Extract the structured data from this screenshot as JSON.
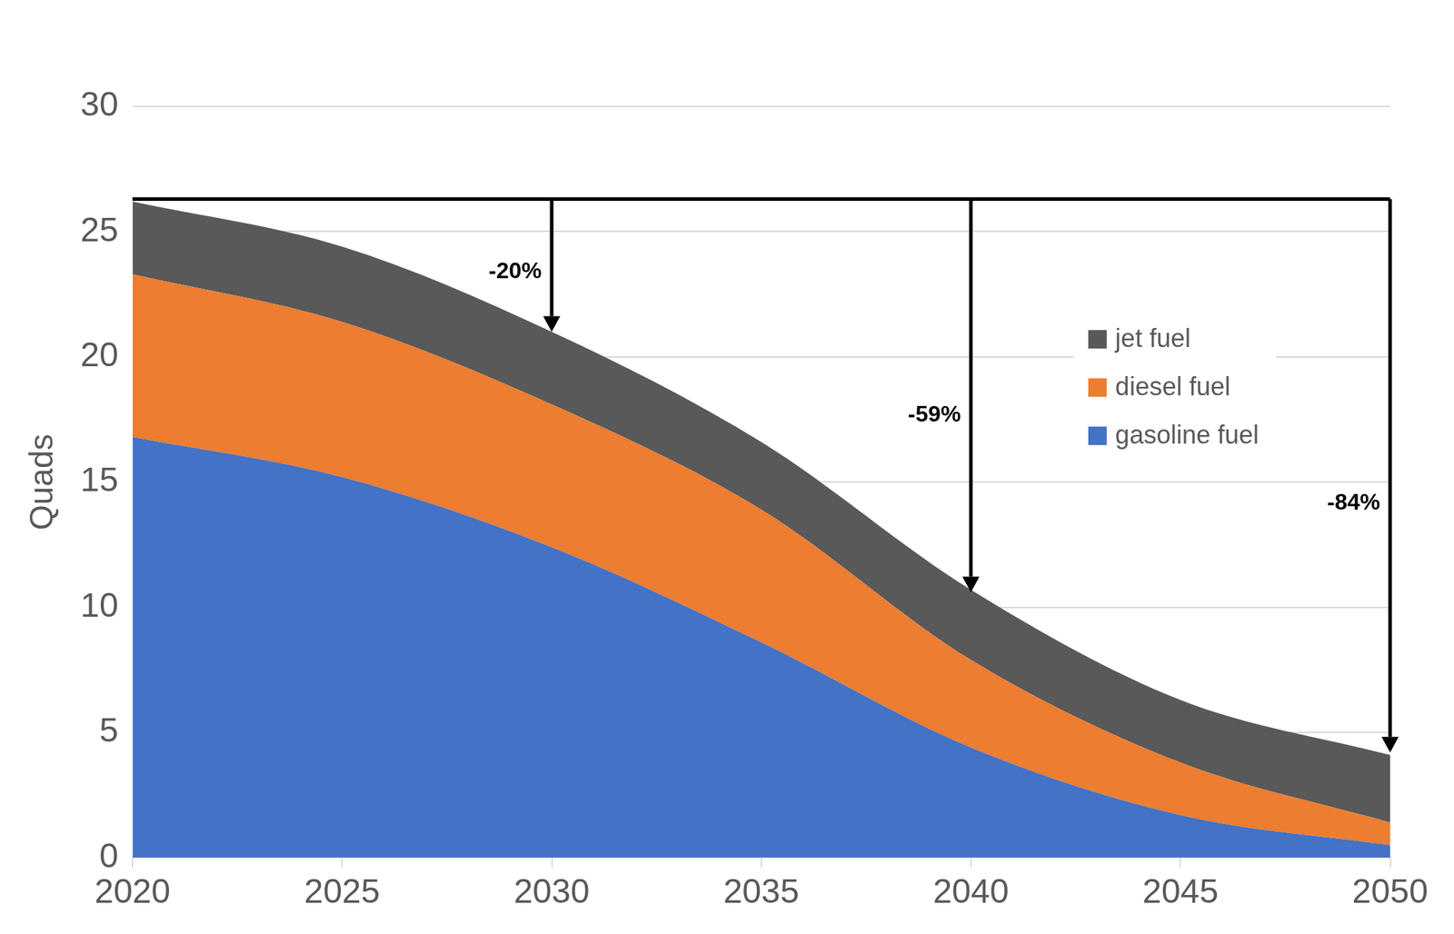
{
  "chart_data": {
    "type": "area",
    "stacked": true,
    "y_label": "Quads",
    "x": [
      2020,
      2025,
      2030,
      2035,
      2040,
      2045,
      2050
    ],
    "series": [
      {
        "name": "gasoline fuel",
        "color": "#4472c4",
        "values": [
          16.8,
          15.2,
          12.4,
          8.6,
          4.4,
          1.7,
          0.5
        ]
      },
      {
        "name": "diesel fuel",
        "color": "#ed7d31",
        "values": [
          6.5,
          6.2,
          5.7,
          5.3,
          3.5,
          2.1,
          0.9
        ]
      },
      {
        "name": "jet fuel",
        "color": "#595959",
        "values": [
          2.9,
          3.0,
          2.9,
          2.7,
          2.8,
          2.5,
          2.7
        ]
      }
    ],
    "xlim": [
      2020,
      2050
    ],
    "xticks": [
      2020,
      2025,
      2030,
      2035,
      2040,
      2045,
      2050
    ],
    "ylim": [
      0,
      30
    ],
    "yticks": [
      0,
      5,
      10,
      15,
      20,
      25,
      30
    ],
    "grid": true,
    "legend": "right",
    "annotations": [
      {
        "text": "-20%",
        "x": 2030,
        "y_from": 26.3,
        "y_to": 21.0
      },
      {
        "text": "-59%",
        "x": 2040,
        "y_from": 26.3,
        "y_to": 10.6
      },
      {
        "text": "-84%",
        "x": 2050,
        "y_from": 26.3,
        "y_to": 4.2
      }
    ]
  }
}
